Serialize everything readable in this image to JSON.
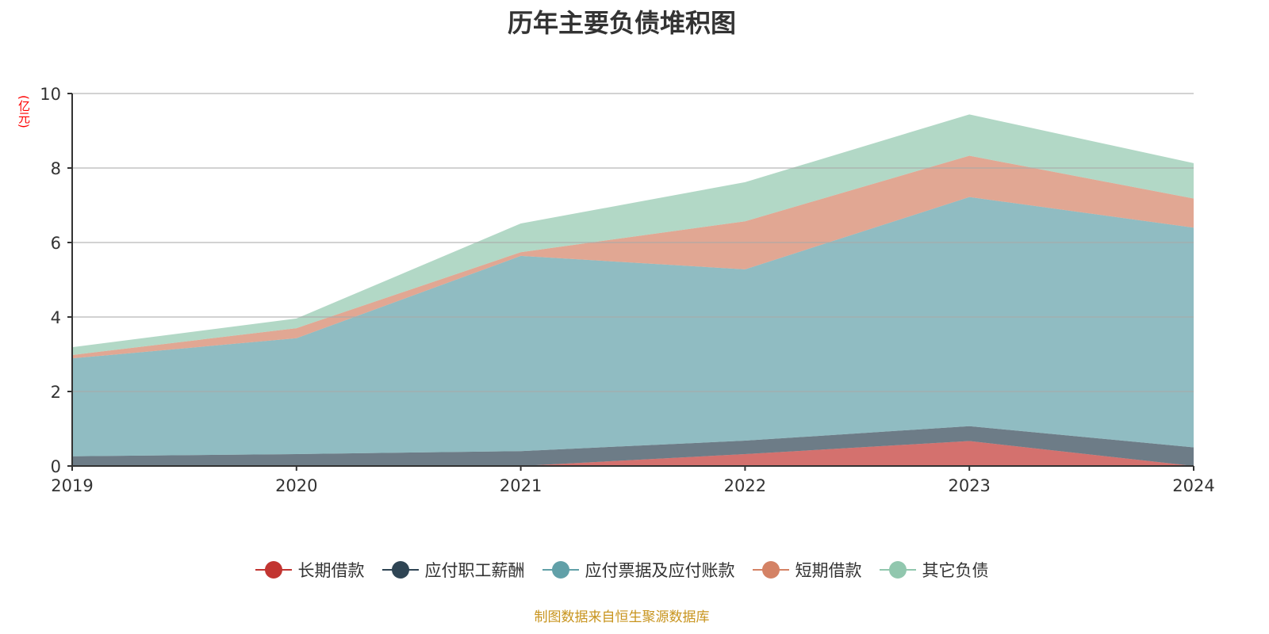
{
  "chart_data": {
    "type": "area",
    "stacked": true,
    "title": "历年主要负债堆积图",
    "ylabel": "(亿元)",
    "xlabel": "",
    "ylim": [
      0,
      10
    ],
    "yticks": [
      "0",
      "2",
      "4",
      "6",
      "8",
      "10"
    ],
    "categories": [
      "2019",
      "2020",
      "2021",
      "2022",
      "2023",
      "2024"
    ],
    "grid": true,
    "legend_position": "bottom",
    "series": [
      {
        "name": "长期借款",
        "color": "#c23531",
        "values": [
          0,
          0,
          0,
          0.32,
          0.67,
          0
        ]
      },
      {
        "name": "应付职工薪酬",
        "color": "#2f4554",
        "values": [
          0.26,
          0.32,
          0.4,
          0.36,
          0.4,
          0.5
        ]
      },
      {
        "name": "应付票据及应付账款",
        "color": "#61a0a8",
        "values": [
          2.63,
          3.11,
          5.24,
          4.6,
          6.15,
          5.9
        ]
      },
      {
        "name": "短期借款",
        "color": "#d48265",
        "values": [
          0.09,
          0.27,
          0.1,
          1.29,
          1.11,
          0.78
        ]
      },
      {
        "name": "其它负债",
        "color": "#91c7ae",
        "values": [
          0.21,
          0.26,
          0.77,
          1.05,
          1.11,
          0.95
        ]
      }
    ]
  },
  "source": "制图数据来自恒生聚源数据库"
}
